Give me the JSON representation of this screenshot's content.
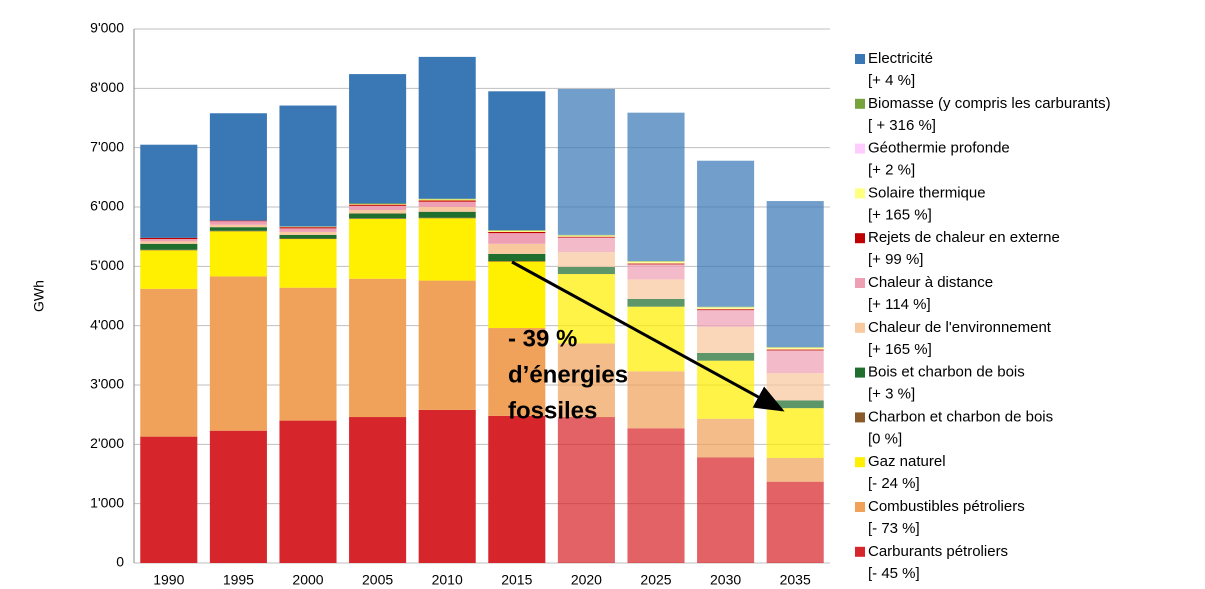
{
  "chart_data": {
    "type": "stacked_bar",
    "y_label": "GWh",
    "categories": [
      "1990",
      "1995",
      "2000",
      "2005",
      "2010",
      "2015",
      "2020",
      "2025",
      "2030",
      "2035"
    ],
    "ylim": [
      0,
      9000
    ],
    "yticks": [
      0,
      {
        "value": 1000,
        "label": "1'000"
      },
      {
        "value": 2000,
        "label": "2'000"
      },
      {
        "value": 3000,
        "label": "3'000"
      },
      {
        "value": 4000,
        "label": "4'000"
      },
      {
        "value": 5000,
        "label": "5'000"
      },
      {
        "value": 6000,
        "label": "6'000"
      },
      {
        "value": 7000,
        "label": "7'000"
      },
      {
        "value": 8000,
        "label": "8'000"
      },
      {
        "value": 9000,
        "label": "9'000"
      }
    ],
    "grid": true,
    "annotation": [
      "- 39 %",
      "d’énergies",
      "fossiles"
    ],
    "series": [
      {
        "name": "Carburants pétroliers",
        "change": "[- 45 %]",
        "color": "#d7262b",
        "values": [
          2130,
          2230,
          2400,
          2460,
          2580,
          2480,
          2460,
          2270,
          1780,
          1370
        ]
      },
      {
        "name": "Combustibles pétroliers",
        "change": "[- 73 %]",
        "color": "#f0a25a",
        "values": [
          2490,
          2600,
          2240,
          2330,
          2180,
          1480,
          1240,
          960,
          650,
          400
        ]
      },
      {
        "name": "Gaz naturel",
        "change": "[- 24 %]",
        "color": "#ffef00",
        "values": [
          650,
          760,
          820,
          1010,
          1050,
          1120,
          1170,
          1090,
          980,
          840
        ]
      },
      {
        "name": "Charbon et charbon de bois",
        "change": "[0 %]",
        "color": "#8b5a2b",
        "values": [
          10,
          10,
          10,
          10,
          10,
          10,
          0,
          0,
          0,
          0
        ]
      },
      {
        "name": "Bois et charbon de bois",
        "change": "[+ 3 %]",
        "color": "#1e6e2e",
        "values": [
          100,
          60,
          60,
          80,
          100,
          120,
          120,
          130,
          130,
          130
        ]
      },
      {
        "name": "Chaleur de l'environnement",
        "change": "[+ 165 %]",
        "color": "#f8c89e",
        "values": [
          40,
          40,
          50,
          60,
          80,
          170,
          250,
          330,
          440,
          460
        ]
      },
      {
        "name": "Chaleur à distance",
        "change": "[+ 114 %]",
        "color": "#ee9fb4",
        "values": [
          40,
          60,
          60,
          70,
          90,
          180,
          240,
          250,
          280,
          380
        ]
      },
      {
        "name": "Rejets de chaleur en externe",
        "change": "[+ 99 %]",
        "color": "#c00000",
        "values": [
          20,
          10,
          20,
          20,
          20,
          20,
          20,
          20,
          20,
          20
        ]
      },
      {
        "name": "Solaire thermique",
        "change": "[+ 165 %]",
        "color": "#ffff80",
        "values": [
          0,
          0,
          10,
          10,
          20,
          20,
          20,
          30,
          30,
          30
        ]
      },
      {
        "name": "Géothermie profonde",
        "change": "[+ 2 %]",
        "color": "#ffccff",
        "values": [
          0,
          0,
          0,
          0,
          0,
          0,
          0,
          0,
          0,
          0
        ]
      },
      {
        "name": "Biomasse (y compris les carburants)",
        "change": "[ + 316 %]",
        "color": "#77a33b",
        "values": [
          0,
          0,
          0,
          10,
          10,
          10,
          10,
          10,
          10,
          10
        ]
      },
      {
        "name": "Electricité",
        "change": "[+ 4 %]",
        "color": "#3a78b5",
        "values": [
          1570,
          1810,
          2040,
          2180,
          2390,
          2340,
          2460,
          2500,
          2460,
          2460
        ]
      }
    ]
  }
}
